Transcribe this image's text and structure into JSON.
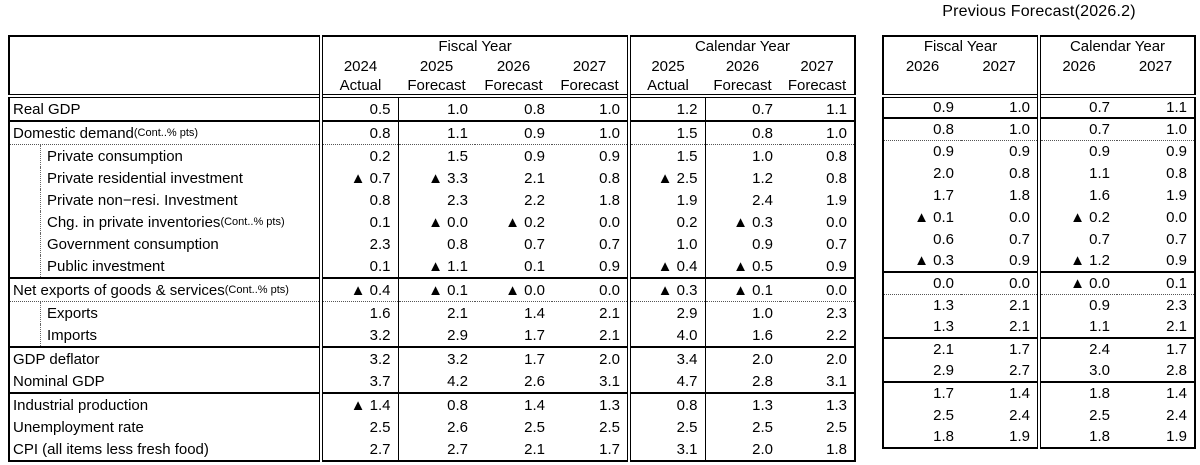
{
  "previous_forecast_title": "Previous Forecast(2026.2)",
  "current_table": {
    "fiscal_group": "Fiscal Year",
    "calendar_group": "Calendar Year",
    "fiscal_years": [
      "2024",
      "2025",
      "2026",
      "2027"
    ],
    "fiscal_types": [
      "Actual",
      "Forecast",
      "Forecast",
      "Forecast"
    ],
    "calendar_years": [
      "2025",
      "2026",
      "2027"
    ],
    "calendar_types": [
      "Actual",
      "Forecast",
      "Forecast"
    ]
  },
  "previous_table": {
    "fiscal_group": "Fiscal Year",
    "calendar_group": "Calendar Year",
    "fiscal_years": [
      "2026",
      "2027"
    ],
    "calendar_years": [
      "2026",
      "2027"
    ]
  },
  "rows": [
    {
      "label": "Real GDP",
      "note": "",
      "indent": false,
      "rule": "solid",
      "fy": [
        "0.5",
        "1.0",
        "0.8",
        "1.0"
      ],
      "cy": [
        "1.2",
        "0.7",
        "1.1"
      ],
      "pfy": [
        "0.9",
        "1.0"
      ],
      "pcy": [
        "0.7",
        "1.1"
      ]
    },
    {
      "label": "Domestic demand",
      "note": "(Cont..% pts)",
      "indent": false,
      "rule": "dotted",
      "fy": [
        "0.8",
        "1.1",
        "0.9",
        "1.0"
      ],
      "cy": [
        "1.5",
        "0.8",
        "1.0"
      ],
      "pfy": [
        "0.8",
        "1.0"
      ],
      "pcy": [
        "0.7",
        "1.0"
      ]
    },
    {
      "label": "Private consumption",
      "note": "",
      "indent": true,
      "rule": "none",
      "fy": [
        "0.2",
        "1.5",
        "0.9",
        "0.9"
      ],
      "cy": [
        "1.5",
        "1.0",
        "0.8"
      ],
      "pfy": [
        "0.9",
        "0.9"
      ],
      "pcy": [
        "0.9",
        "0.9"
      ]
    },
    {
      "label": "Private residential investment",
      "note": "",
      "indent": true,
      "rule": "none",
      "fy": [
        "▲ 0.7",
        "▲ 3.3",
        "2.1",
        "0.8"
      ],
      "cy": [
        "▲ 2.5",
        "1.2",
        "0.8"
      ],
      "pfy": [
        "2.0",
        "0.8"
      ],
      "pcy": [
        "1.1",
        "0.8"
      ]
    },
    {
      "label": "Private non−resi. Investment",
      "note": "",
      "indent": true,
      "rule": "none",
      "fy": [
        "0.8",
        "2.3",
        "2.2",
        "1.8"
      ],
      "cy": [
        "1.9",
        "2.4",
        "1.9"
      ],
      "pfy": [
        "1.7",
        "1.8"
      ],
      "pcy": [
        "1.6",
        "1.9"
      ]
    },
    {
      "label": "Chg. in private inventories",
      "note": " (Cont..% pts)",
      "indent": true,
      "rule": "none",
      "fy": [
        "0.1",
        "▲ 0.0",
        "▲ 0.2",
        "0.0"
      ],
      "cy": [
        "0.2",
        "▲ 0.3",
        "0.0"
      ],
      "pfy": [
        "▲ 0.1",
        "0.0"
      ],
      "pcy": [
        "▲ 0.2",
        "0.0"
      ]
    },
    {
      "label": "Government consumption",
      "note": "",
      "indent": true,
      "rule": "none",
      "fy": [
        "2.3",
        "0.8",
        "0.7",
        "0.7"
      ],
      "cy": [
        "1.0",
        "0.9",
        "0.7"
      ],
      "pfy": [
        "0.6",
        "0.7"
      ],
      "pcy": [
        "0.7",
        "0.7"
      ]
    },
    {
      "label": "Public investment",
      "note": "",
      "indent": true,
      "rule": "solid",
      "fy": [
        "0.1",
        "▲ 1.1",
        "0.1",
        "0.9"
      ],
      "cy": [
        "▲ 0.4",
        "▲ 0.5",
        "0.9"
      ],
      "pfy": [
        "▲ 0.3",
        "0.9"
      ],
      "pcy": [
        "▲ 1.2",
        "0.9"
      ]
    },
    {
      "label": "Net exports of goods & services",
      "note": " (Cont..% pts)",
      "indent": false,
      "rule": "dotted",
      "fy": [
        "▲ 0.4",
        "▲ 0.1",
        "▲ 0.0",
        "0.0"
      ],
      "cy": [
        "▲ 0.3",
        "▲ 0.1",
        "0.0"
      ],
      "pfy": [
        "0.0",
        "0.0"
      ],
      "pcy": [
        "▲ 0.0",
        "0.1"
      ]
    },
    {
      "label": "Exports",
      "note": "",
      "indent": true,
      "rule": "none",
      "fy": [
        "1.6",
        "2.1",
        "1.4",
        "2.1"
      ],
      "cy": [
        "2.9",
        "1.0",
        "2.3"
      ],
      "pfy": [
        "1.3",
        "2.1"
      ],
      "pcy": [
        "0.9",
        "2.3"
      ]
    },
    {
      "label": "Imports",
      "note": "",
      "indent": true,
      "rule": "solid",
      "fy": [
        "3.2",
        "2.9",
        "1.7",
        "2.1"
      ],
      "cy": [
        "4.0",
        "1.6",
        "2.2"
      ],
      "pfy": [
        "1.3",
        "2.1"
      ],
      "pcy": [
        "1.1",
        "2.1"
      ]
    },
    {
      "label": "GDP deflator",
      "note": "",
      "indent": false,
      "rule": "none",
      "fy": [
        "3.2",
        "3.2",
        "1.7",
        "2.0"
      ],
      "cy": [
        "3.4",
        "2.0",
        "2.0"
      ],
      "pfy": [
        "2.1",
        "1.7"
      ],
      "pcy": [
        "2.4",
        "1.7"
      ]
    },
    {
      "label": "Nominal GDP",
      "note": "",
      "indent": false,
      "rule": "solid",
      "fy": [
        "3.7",
        "4.2",
        "2.6",
        "3.1"
      ],
      "cy": [
        "4.7",
        "2.8",
        "3.1"
      ],
      "pfy": [
        "2.9",
        "2.7"
      ],
      "pcy": [
        "3.0",
        "2.8"
      ]
    },
    {
      "label": "Industrial production",
      "note": "",
      "indent": false,
      "rule": "none",
      "fy": [
        "▲ 1.4",
        "0.8",
        "1.4",
        "1.3"
      ],
      "cy": [
        "0.8",
        "1.3",
        "1.3"
      ],
      "pfy": [
        "1.7",
        "1.4"
      ],
      "pcy": [
        "1.8",
        "1.4"
      ]
    },
    {
      "label": "Unemployment rate",
      "note": "",
      "indent": false,
      "rule": "none",
      "fy": [
        "2.5",
        "2.6",
        "2.5",
        "2.5"
      ],
      "cy": [
        "2.5",
        "2.5",
        "2.5"
      ],
      "pfy": [
        "2.5",
        "2.4"
      ],
      "pcy": [
        "2.5",
        "2.4"
      ]
    },
    {
      "label": "CPI (all items less fresh food)",
      "note": "",
      "indent": false,
      "rule": "none",
      "fy": [
        "2.7",
        "2.7",
        "2.1",
        "1.7"
      ],
      "cy": [
        "3.1",
        "2.0",
        "1.8"
      ],
      "pfy": [
        "1.8",
        "1.9"
      ],
      "pcy": [
        "1.8",
        "1.9"
      ]
    }
  ]
}
